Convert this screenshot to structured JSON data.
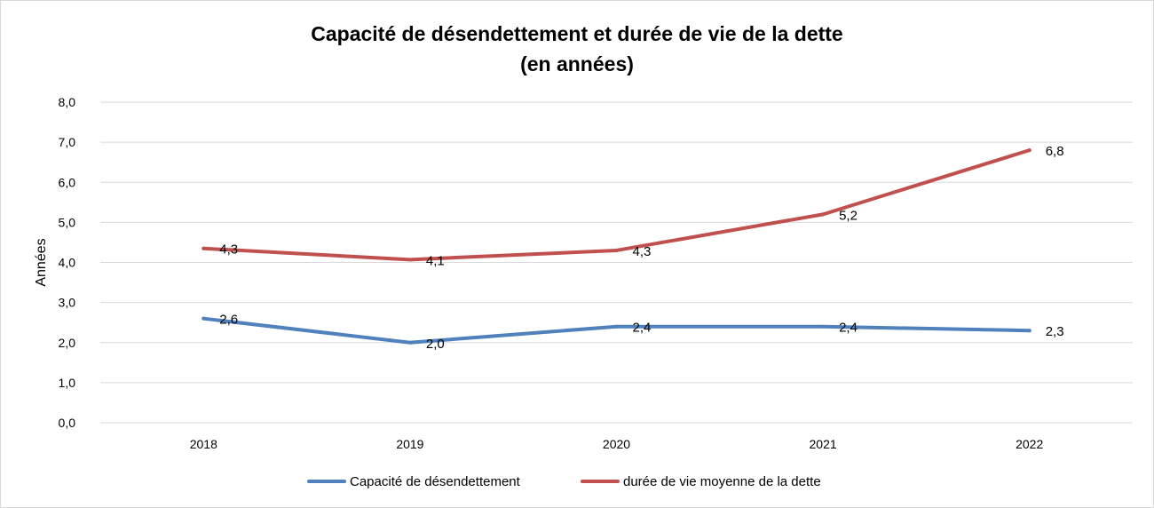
{
  "chart_data": {
    "type": "line",
    "title_line1": "Capacité de désendettement et durée de vie de la dette",
    "title_line2": "(en années)",
    "xlabel": "",
    "ylabel": "Années",
    "categories": [
      "2018",
      "2019",
      "2020",
      "2021",
      "2022"
    ],
    "ylim": [
      0,
      8
    ],
    "yticks": [
      "0,0",
      "1,0",
      "2,0",
      "3,0",
      "4,0",
      "5,0",
      "6,0",
      "7,0",
      "8,0"
    ],
    "grid": true,
    "legend_position": "bottom",
    "series": [
      {
        "name": "Capacité de désendettement",
        "color": "#4f81bd",
        "values": [
          2.6,
          2.0,
          2.4,
          2.4,
          2.3
        ],
        "labels": [
          "2,6",
          "2,0",
          "2,4",
          "2,4",
          "2,3"
        ]
      },
      {
        "name": "durée de vie moyenne de la dette",
        "color": "#c0504d",
        "values": [
          4.35,
          4.07,
          4.3,
          5.2,
          6.8
        ],
        "labels": [
          "4,3",
          "4,1",
          "4,3",
          "5,2",
          "6,8"
        ]
      }
    ]
  }
}
